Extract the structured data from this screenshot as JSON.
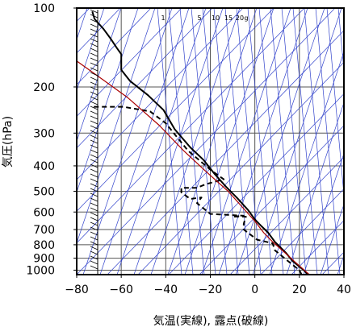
{
  "chart_data": {
    "type": "line",
    "title": "",
    "xlabel": "気温(実線), 露点(破線)",
    "ylabel": "気圧(hPa)",
    "xlim": [
      -80,
      40
    ],
    "ylim": [
      1040,
      100
    ],
    "y_scale": "log",
    "x_ticks": [
      -80,
      -60,
      -40,
      -20,
      0,
      20,
      40
    ],
    "y_ticks": [
      100,
      200,
      300,
      400,
      500,
      600,
      700,
      800,
      900,
      1000
    ],
    "mixing_ratio_labels": [
      "1",
      "5",
      "10",
      "15",
      "20",
      "g"
    ],
    "series": [
      {
        "role": "temperature",
        "line_style": "solid",
        "points": [
          [
            23.8,
            1040
          ],
          [
            22.0,
            1000
          ],
          [
            17.0,
            925
          ],
          [
            14.0,
            860
          ],
          [
            9.0,
            780
          ],
          [
            6.0,
            720
          ],
          [
            3.0,
            680
          ],
          [
            0.0,
            640
          ],
          [
            -3.0,
            590
          ],
          [
            -8.0,
            530
          ],
          [
            -13.0,
            480
          ],
          [
            -18.0,
            430
          ],
          [
            -23.0,
            380
          ],
          [
            -29.0,
            340
          ],
          [
            -36.0,
            290
          ],
          [
            -41.0,
            245
          ],
          [
            -48.0,
            215
          ],
          [
            -56.0,
            190
          ],
          [
            -60.0,
            172
          ],
          [
            -60.0,
            150
          ],
          [
            -62.0,
            142
          ],
          [
            -65.0,
            130
          ],
          [
            -68.0,
            120
          ],
          [
            -72.0,
            110
          ],
          [
            -73.0,
            103
          ]
        ]
      },
      {
        "role": "dewpoint",
        "line_style": "dashed",
        "points": [
          [
            21.0,
            1040
          ],
          [
            20.0,
            1000
          ],
          [
            15.0,
            925
          ],
          [
            9.0,
            840
          ],
          [
            8.0,
            790
          ],
          [
            1.0,
            765
          ],
          [
            -5.0,
            700
          ],
          [
            -5.0,
            665
          ],
          [
            -4.0,
            625
          ],
          [
            -10.0,
            625
          ],
          [
            -5.0,
            620
          ],
          [
            -20.0,
            610
          ],
          [
            -26.0,
            555
          ],
          [
            -24.0,
            528
          ],
          [
            -29.0,
            535
          ],
          [
            -33.0,
            505
          ],
          [
            -33.0,
            485
          ],
          [
            -26.0,
            485
          ],
          [
            -22.0,
            470
          ],
          [
            -14.0,
            450
          ],
          [
            -19.0,
            420
          ],
          [
            -22.0,
            400
          ],
          [
            -30.0,
            350
          ],
          [
            -40.0,
            275
          ],
          [
            -47.0,
            248
          ],
          [
            -59.0,
            238
          ],
          [
            -73.0,
            238
          ]
        ]
      },
      {
        "role": "reference",
        "color": "#aa0000",
        "line_style": "solid",
        "points": [
          [
            24.5,
            1040
          ],
          [
            18.0,
            930
          ],
          [
            13.0,
            850
          ],
          [
            8.0,
            780
          ],
          [
            4.0,
            720
          ],
          [
            0.0,
            650
          ],
          [
            -6.0,
            570
          ],
          [
            -12.0,
            500
          ],
          [
            -22.0,
            420
          ],
          [
            -32.0,
            350
          ],
          [
            -43.0,
            280
          ],
          [
            -57.0,
            220
          ],
          [
            -72.0,
            178
          ],
          [
            -81.0,
            157
          ]
        ]
      }
    ],
    "colors": {
      "grid": "#555555",
      "guide_lines": "#3344cc",
      "temperature": "#000000",
      "dewpoint": "#000000",
      "reference": "#aa0000"
    },
    "grid": true,
    "wind_barbs": "left margin, every level"
  }
}
